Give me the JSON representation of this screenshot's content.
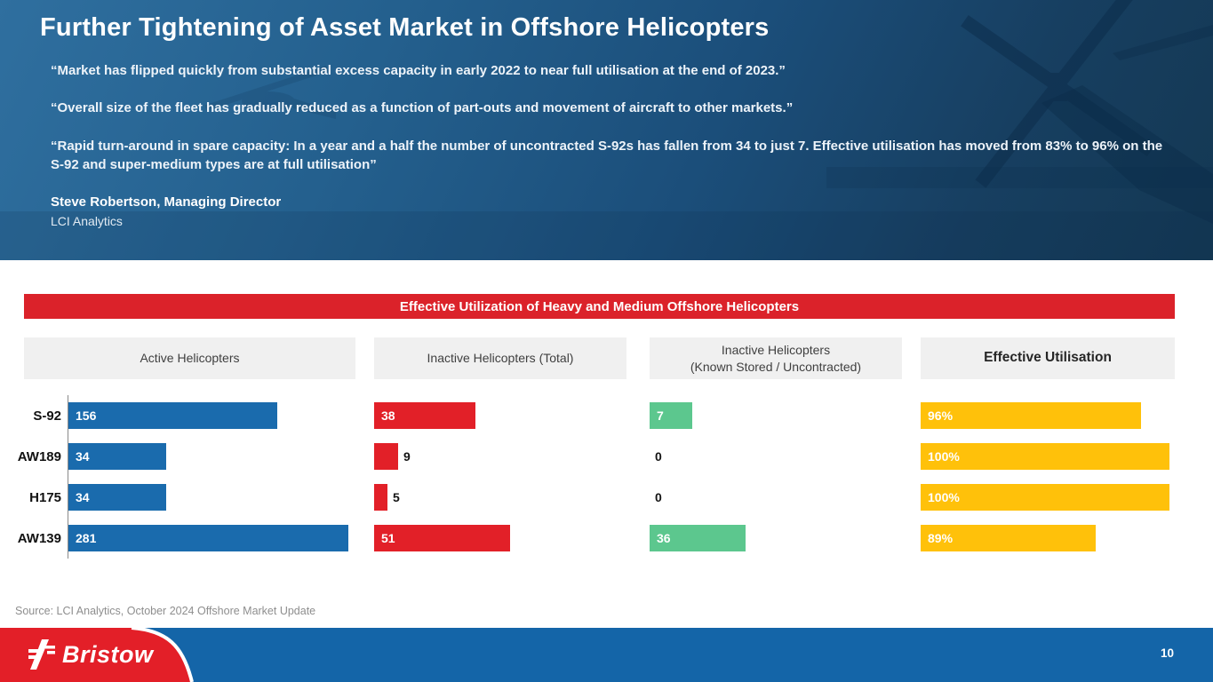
{
  "slide": {
    "title": "Further Tightening of Asset Market in Offshore Helicopters",
    "quotes": [
      "“Market has flipped quickly from substantial excess capacity in early 2022 to near full utilisation at the end of 2023.”",
      "“Overall size of the fleet has gradually reduced as a function of part-outs and movement of aircraft to other markets.”",
      "“Rapid turn-around in spare capacity: In a year and a half the number of uncontracted S-92s has fallen from 34 to just 7. Effective utilisation has moved from 83% to 96% on the S-92 and super-medium types are at full utilisation”"
    ],
    "attribution_name": "Steve Robertson, Managing Director",
    "attribution_org": "LCI Analytics"
  },
  "banner": {
    "title": "Effective Utilization of Heavy and Medium Offshore Helicopters",
    "color": "#db222a"
  },
  "columns": [
    {
      "label": "Active Helicopters",
      "label2": ""
    },
    {
      "label": "Inactive Helicopters (Total)",
      "label2": ""
    },
    {
      "label": "Inactive Helicopters",
      "label2": "(Known Stored / Uncontracted)"
    },
    {
      "label": "Effective Utilisation",
      "label2": ""
    }
  ],
  "chart_data": {
    "type": "bar",
    "orientation": "horizontal",
    "title": "Effective Utilization of Heavy and Medium Offshore Helicopters",
    "categories": [
      "S-92",
      "AW189",
      "H175",
      "AW139"
    ],
    "series": [
      {
        "name": "Active Helicopters",
        "color": "#1a6bad",
        "values": [
          156,
          34,
          34,
          281
        ],
        "labels": [
          "156",
          "34",
          "34",
          "281"
        ]
      },
      {
        "name": "Inactive Helicopters (Total)",
        "color": "#e22028",
        "values": [
          38,
          9,
          5,
          51
        ],
        "labels": [
          "38",
          "9",
          "5",
          "51"
        ]
      },
      {
        "name": "Inactive Helicopters (Known Stored / Uncontracted)",
        "color": "#5cc78e",
        "values": [
          7,
          0,
          0,
          36
        ],
        "labels": [
          "7",
          "0",
          "0",
          "36"
        ]
      },
      {
        "name": "Effective Utilisation",
        "color": "#ffc10a",
        "unit": "%",
        "values": [
          96,
          100,
          100,
          89
        ],
        "labels": [
          "96%",
          "100%",
          "100%",
          "89%"
        ]
      }
    ],
    "legend": "none",
    "grid": false
  },
  "source": "Source: LCI Analytics, October 2024 Offshore Market Update",
  "footer": {
    "brand": "Bristow",
    "page_number": "10",
    "bar_color": "#1465a8",
    "brand_red": "#e31f28"
  },
  "colors": {
    "hero_blue_dark": "#143853",
    "hero_blue_light": "#2f6f9f",
    "bar_blue": "#1a6bad",
    "bar_red": "#e22028",
    "bar_green": "#5cc78e",
    "bar_yellow": "#ffc10a",
    "header_cell_bg": "#f0f0f0"
  }
}
